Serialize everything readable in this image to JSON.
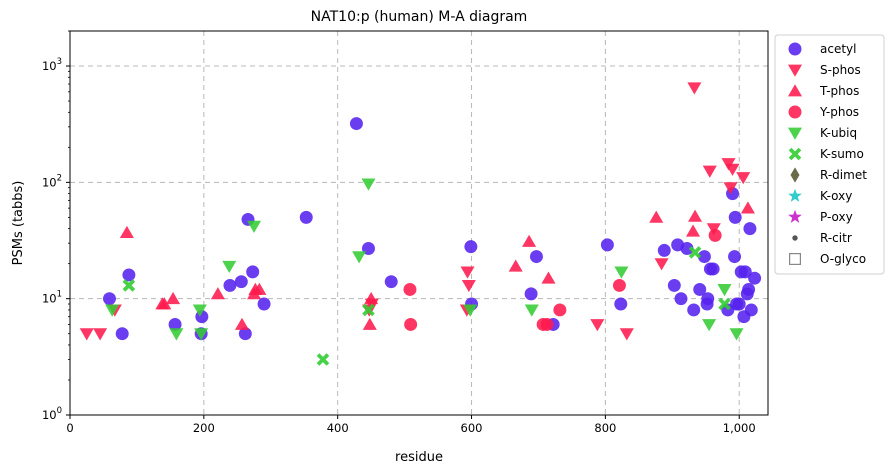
{
  "chart_data": {
    "type": "scatter",
    "title": "NAT10:p (human) M-A diagram",
    "xlabel": "residue",
    "ylabel": "PSMs (tabbs)",
    "xlim": [
      0,
      1043
    ],
    "ylim": [
      1,
      2000
    ],
    "yscale": "log",
    "grid": true,
    "legend_position": "top-right, outside plot",
    "x_ticks": [
      {
        "value": 0,
        "label": "0"
      },
      {
        "value": 200,
        "label": "200"
      },
      {
        "value": 400,
        "label": "400"
      },
      {
        "value": 600,
        "label": "600"
      },
      {
        "value": 800,
        "label": "800"
      },
      {
        "value": 1000,
        "label": "1,000"
      }
    ],
    "y_ticks": [
      {
        "value": 1,
        "base": "10",
        "exp": "0"
      },
      {
        "value": 10,
        "base": "10",
        "exp": "1"
      },
      {
        "value": 100,
        "base": "10",
        "exp": "2"
      },
      {
        "value": 1000,
        "base": "10",
        "exp": "3"
      }
    ],
    "series": [
      {
        "name": "acetyl",
        "marker": "circle",
        "color": "#5522ee",
        "points": [
          [
            59,
            10
          ],
          [
            78,
            5
          ],
          [
            88,
            16
          ],
          [
            157,
            6
          ],
          [
            196,
            5
          ],
          [
            197,
            7
          ],
          [
            239,
            13
          ],
          [
            256,
            14
          ],
          [
            262,
            5
          ],
          [
            266,
            48
          ],
          [
            273,
            17
          ],
          [
            290,
            9
          ],
          [
            353,
            50
          ],
          [
            428,
            320
          ],
          [
            446,
            27
          ],
          [
            480,
            14
          ],
          [
            599,
            28
          ],
          [
            600,
            9
          ],
          [
            689,
            11
          ],
          [
            697,
            23
          ],
          [
            722,
            6
          ],
          [
            803,
            29
          ],
          [
            823,
            9
          ],
          [
            888,
            26
          ],
          [
            903,
            13
          ],
          [
            908,
            29
          ],
          [
            913,
            10
          ],
          [
            922,
            27
          ],
          [
            932,
            8
          ],
          [
            941,
            12
          ],
          [
            948,
            23
          ],
          [
            952,
            9
          ],
          [
            953,
            10
          ],
          [
            957,
            18
          ],
          [
            961,
            18
          ],
          [
            983,
            8
          ],
          [
            990,
            80
          ],
          [
            993,
            23
          ],
          [
            994,
            50
          ],
          [
            996,
            9
          ],
          [
            1000,
            9
          ],
          [
            1003,
            17
          ],
          [
            1007,
            7
          ],
          [
            1009,
            17
          ],
          [
            1012,
            11
          ],
          [
            1014,
            12
          ],
          [
            1016,
            40
          ],
          [
            1018,
            8
          ],
          [
            1023,
            15
          ]
        ]
      },
      {
        "name": "S-phos",
        "marker": "triangle-down",
        "color": "#ff1a4d",
        "points": [
          [
            25,
            5
          ],
          [
            45,
            5
          ],
          [
            67,
            8
          ],
          [
            447,
            8
          ],
          [
            451,
            9
          ],
          [
            593,
            8
          ],
          [
            594,
            17
          ],
          [
            596,
            13
          ],
          [
            788,
            6
          ],
          [
            832,
            5
          ],
          [
            884,
            20
          ],
          [
            933,
            650
          ],
          [
            956,
            125
          ],
          [
            962,
            40
          ],
          [
            984,
            145
          ],
          [
            987,
            90
          ],
          [
            990,
            130
          ],
          [
            1006,
            110
          ]
        ]
      },
      {
        "name": "T-phos",
        "marker": "triangle-up",
        "color": "#ff1a4d",
        "points": [
          [
            85,
            37
          ],
          [
            138,
            9
          ],
          [
            141,
            9
          ],
          [
            154,
            10
          ],
          [
            221,
            11
          ],
          [
            257,
            6
          ],
          [
            275,
            11
          ],
          [
            277,
            12
          ],
          [
            283,
            12
          ],
          [
            448,
            6
          ],
          [
            450,
            10
          ],
          [
            666,
            19
          ],
          [
            686,
            31
          ],
          [
            715,
            15
          ],
          [
            876,
            50
          ],
          [
            931,
            38
          ],
          [
            934,
            51
          ],
          [
            1013,
            60
          ]
        ]
      },
      {
        "name": "Y-phos",
        "marker": "circle",
        "color": "#ff1a4d",
        "points": [
          [
            508,
            12
          ],
          [
            509,
            6
          ],
          [
            707,
            6
          ],
          [
            713,
            6
          ],
          [
            732,
            8
          ],
          [
            821,
            13
          ],
          [
            964,
            35
          ]
        ]
      },
      {
        "name": "K-ubiq",
        "marker": "triangle-down",
        "color": "#33cc33",
        "points": [
          [
            63,
            8
          ],
          [
            159,
            5
          ],
          [
            194,
            8
          ],
          [
            196,
            5
          ],
          [
            238,
            19
          ],
          [
            275,
            42
          ],
          [
            432,
            23
          ],
          [
            446,
            97
          ],
          [
            598,
            8
          ],
          [
            690,
            8
          ],
          [
            824,
            17
          ],
          [
            955,
            6
          ],
          [
            978,
            12
          ],
          [
            996,
            5
          ]
        ]
      },
      {
        "name": "K-sumo",
        "marker": "x-thick",
        "color": "#33cc33",
        "points": [
          [
            88,
            13
          ],
          [
            378,
            3
          ],
          [
            446,
            8
          ],
          [
            934,
            25
          ],
          [
            978,
            9
          ]
        ]
      },
      {
        "name": "R-dimet",
        "marker": "diamond",
        "color": "#6b6b4a",
        "points": []
      },
      {
        "name": "K-oxy",
        "marker": "star",
        "color": "#33cccc",
        "points": []
      },
      {
        "name": "P-oxy",
        "marker": "star",
        "color": "#cc33cc",
        "points": []
      },
      {
        "name": "R-citr",
        "marker": "small-dot",
        "color": "#555555",
        "points": []
      },
      {
        "name": "O-glyco",
        "marker": "square-open",
        "color": "#888888",
        "points": []
      }
    ]
  }
}
